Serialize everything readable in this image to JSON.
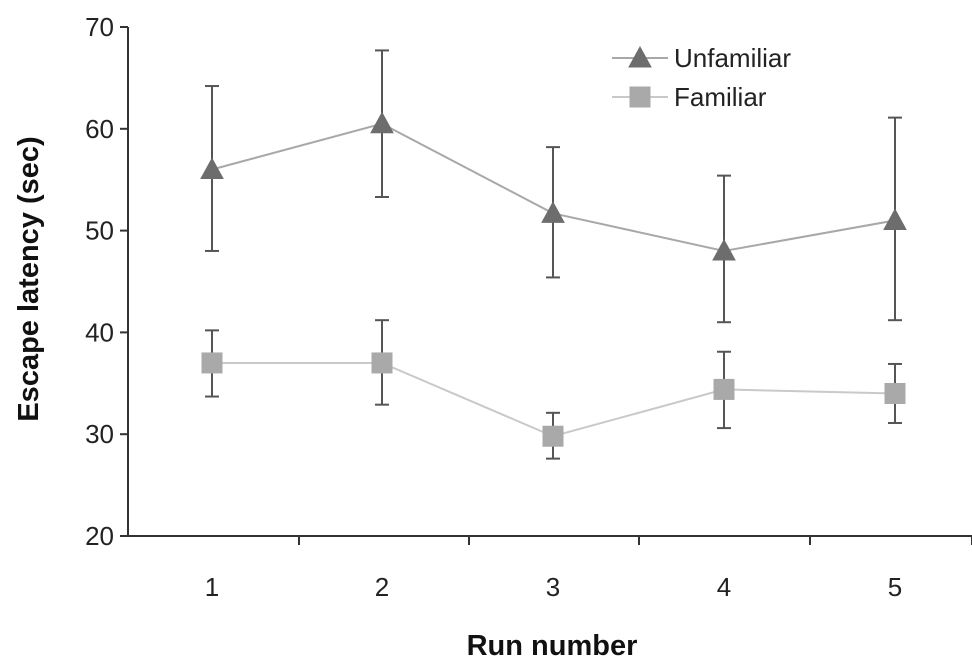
{
  "chart_data": {
    "type": "line",
    "xlabel": "Run number",
    "ylabel": "Escape latency (sec)",
    "categories": [
      "1",
      "2",
      "3",
      "4",
      "5"
    ],
    "ylim": [
      20,
      70
    ],
    "yticks": [
      20,
      30,
      40,
      50,
      60,
      70
    ],
    "grid": false,
    "legend_position": "top-right",
    "series": [
      {
        "name": "Unfamiliar",
        "marker": "triangle",
        "color": "#6d6d6d",
        "line_color": "#a8a8a8",
        "values": [
          56,
          60.5,
          51.7,
          48,
          51
        ],
        "error_upper": [
          64.2,
          67.7,
          58.2,
          55.4,
          61.1
        ],
        "error_lower": [
          48,
          53.3,
          45.4,
          41,
          41.2
        ]
      },
      {
        "name": "Familiar",
        "marker": "square",
        "color": "#a9a9a9",
        "line_color": "#c9c9c9",
        "values": [
          37,
          37,
          29.8,
          34.4,
          34
        ],
        "error_upper": [
          40.2,
          41.2,
          32.1,
          38.1,
          36.9
        ],
        "error_lower": [
          33.7,
          32.9,
          27.6,
          30.6,
          31.1
        ]
      }
    ]
  }
}
